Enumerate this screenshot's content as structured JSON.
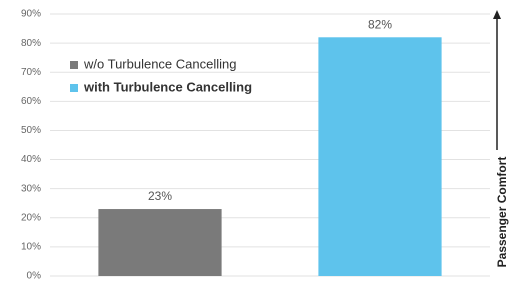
{
  "chart_data": {
    "type": "bar",
    "ylabel": "Passenger Comfort",
    "categories": [
      null,
      null
    ],
    "series": [
      {
        "name": "w/o Turbulence Cancelling",
        "color": "#7a7a7a",
        "values": [
          23,
          null
        ],
        "value_labels": [
          "23%",
          null
        ]
      },
      {
        "name": "with Turbulence Cancelling",
        "color": "#5ec3ec",
        "values": [
          null,
          82
        ],
        "value_labels": [
          null,
          "82%"
        ]
      }
    ],
    "ylim": [
      0,
      90
    ],
    "yticks": [
      {
        "value": 0,
        "label": "0%"
      },
      {
        "value": 10,
        "label": "10%"
      },
      {
        "value": 20,
        "label": "20%"
      },
      {
        "value": 30,
        "label": "30%"
      },
      {
        "value": 40,
        "label": "40%"
      },
      {
        "value": 50,
        "label": "50%"
      },
      {
        "value": 60,
        "label": "60%"
      },
      {
        "value": 70,
        "label": "70%"
      },
      {
        "value": 80,
        "label": "80%"
      },
      {
        "value": 90,
        "label": "90%"
      }
    ],
    "grid": true
  }
}
